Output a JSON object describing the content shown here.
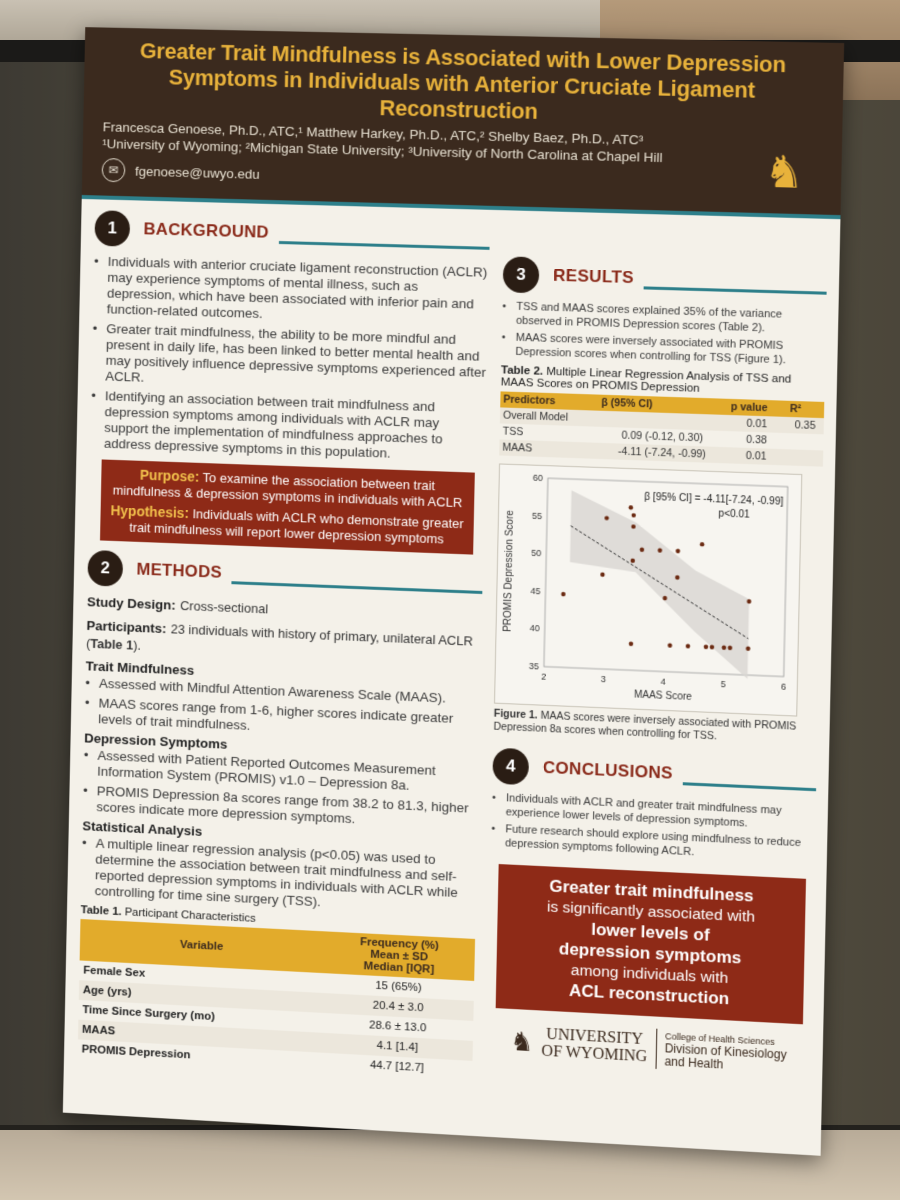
{
  "poster": {
    "title": "Greater Trait Mindfulness is Associated with Lower Depression Symptoms in Individuals with Anterior Cruciate Ligament Reconstruction",
    "authors": "Francesca Genoese, Ph.D., ATC,¹ Matthew Harkey, Ph.D., ATC,² Shelby Baez, Ph.D., ATC³",
    "affiliations": "¹University of Wyoming; ²Michigan State University; ³University of North Carolina at Chapel Hill",
    "email": "fgenoese@uwyo.edu"
  },
  "background": {
    "num": "1",
    "title": "BACKGROUND",
    "bullets": [
      "Individuals with anterior cruciate ligament reconstruction (ACLR) may experience symptoms of mental illness, such as depression, which have been associated with inferior pain and function-related outcomes.",
      "Greater trait mindfulness, the ability to be more mindful and present in daily life, has been linked to better mental health and may positively influence depressive symptoms experienced after ACLR.",
      "Identifying an association between trait mindfulness and depression symptoms among individuals with ACLR may support the implementation of mindfulness approaches to address depressive symptoms in this population."
    ],
    "purpose_label": "Purpose:",
    "purpose_text": "To examine the association between trait mindfulness & depression symptoms in individuals with ACLR",
    "hypothesis_label": "Hypothesis:",
    "hypothesis_text": "Individuals with ACLR who demonstrate greater trait mindfulness will report lower depression symptoms"
  },
  "methods": {
    "num": "2",
    "title": "METHODS",
    "design_label": "Study Design:",
    "design_text": "Cross-sectional",
    "participants_label": "Participants:",
    "participants_text": "23 individuals with history of primary, unilateral ACLR (",
    "participants_table_ref": "Table 1",
    "participants_end": ").",
    "trait_title": "Trait Mindfulness",
    "trait_bullets": [
      "Assessed with Mindful Attention Awareness Scale (MAAS).",
      "MAAS scores range from 1-6, higher scores indicate greater levels of trait mindfulness."
    ],
    "dep_title": "Depression Symptoms",
    "dep_bullets": [
      "Assessed with Patient Reported Outcomes Measurement Information System (PROMIS) v1.0 – Depression 8a.",
      "PROMIS Depression 8a scores range  from 38.2 to 81.3, higher scores indicate more depression symptoms."
    ],
    "stat_title": "Statistical Analysis",
    "stat_bullets": [
      "A multiple linear regression analysis (p<0.05) was used to determine the association between trait mindfulness and self-reported depression symptoms in individuals with ACLR while controlling for time sine surgery (TSS)."
    ],
    "table1_caption_bold": "Table 1.",
    "table1_caption": "Participant Characteristics",
    "table1_headers": [
      "Variable",
      "Frequency (%)\nMean ± SD\nMedian [IQR]"
    ],
    "table1_rows": [
      {
        "variable": "Female Sex",
        "value": "15 (65%)"
      },
      {
        "variable": "Age (yrs)",
        "value": "20.4 ± 3.0"
      },
      {
        "variable": "Time Since Surgery (mo)",
        "value": "28.6 ± 13.0"
      },
      {
        "variable": "MAAS",
        "value": "4.1 [1.4]"
      },
      {
        "variable": "PROMIS Depression",
        "value": "44.7 [12.7]"
      }
    ]
  },
  "results": {
    "num": "3",
    "title": "RESULTS",
    "bullets": [
      "TSS and MAAS scores explained 35% of the variance observed in PROMIS Depression scores (Table 2).",
      "MAAS scores were inversely associated with PROMIS Depression scores when controlling for TSS (Figure 1)."
    ],
    "table2_caption_bold": "Table 2.",
    "table2_caption": "Multiple Linear Regression Analysis of TSS and MAAS Scores on PROMIS Depression",
    "table2_headers": [
      "Predictors",
      "β (95% CI)",
      "p value",
      "R²"
    ],
    "table2_rows": [
      {
        "predictor": "Overall Model",
        "beta": "",
        "p": "0.01",
        "r2": "0.35"
      },
      {
        "predictor": "TSS",
        "beta": "0.09 (-0.12, 0.30)",
        "p": "0.38",
        "r2": ""
      },
      {
        "predictor": "MAAS",
        "beta": "-4.11 (-7.24, -0.99)",
        "p": "0.01",
        "r2": ""
      }
    ],
    "figure_caption_bold": "Figure 1.",
    "figure_caption": "MAAS scores were inversely associated with PROMIS Depression 8a scores when controlling for TSS."
  },
  "chart_data": {
    "type": "scatter",
    "annotation_line1": "β  [95% CI] =  -4.11[-7.24, -0.99]",
    "annotation_line2": "p<0.01",
    "xlabel": "MAAS Score",
    "ylabel": "PROMIS Depression Score",
    "xlim": [
      2,
      6
    ],
    "ylim": [
      35,
      60
    ],
    "xticks": [
      2,
      3,
      4,
      5,
      6
    ],
    "yticks": [
      35,
      40,
      45,
      50,
      55,
      60
    ],
    "points": [
      [
        2.3,
        44.7
      ],
      [
        3.0,
        55.0
      ],
      [
        2.95,
        47.5
      ],
      [
        3.4,
        56.5
      ],
      [
        3.45,
        55.5
      ],
      [
        3.45,
        54.0
      ],
      [
        3.45,
        49.5
      ],
      [
        3.45,
        38.5
      ],
      [
        3.6,
        51.0
      ],
      [
        3.9,
        51.0
      ],
      [
        4.0,
        44.7
      ],
      [
        4.1,
        38.5
      ],
      [
        4.2,
        47.5
      ],
      [
        4.2,
        51.0
      ],
      [
        4.4,
        38.5
      ],
      [
        4.6,
        52.0
      ],
      [
        4.7,
        38.5
      ],
      [
        4.8,
        38.5
      ],
      [
        5.0,
        38.5
      ],
      [
        5.1,
        38.5
      ],
      [
        5.4,
        44.7
      ],
      [
        5.4,
        38.5
      ]
    ],
    "trend": [
      [
        2.4,
        53.8
      ],
      [
        5.4,
        39.8
      ]
    ],
    "ci_upper": [
      [
        2.4,
        58.5
      ],
      [
        3.5,
        54.5
      ],
      [
        4.5,
        48.5
      ],
      [
        5.4,
        45.0
      ]
    ],
    "ci_lower": [
      [
        2.4,
        49.0
      ],
      [
        3.5,
        48.0
      ],
      [
        4.5,
        40.5
      ],
      [
        5.4,
        34.5
      ]
    ]
  },
  "conclusions": {
    "num": "4",
    "title": "CONCLUSIONS",
    "bullets": [
      "Individuals with ACLR and greater trait mindfulness may experience lower levels of depression symptoms.",
      "Future research should explore using mindfulness to reduce depression symptoms following ACLR."
    ],
    "box_line1": "Greater trait mindfulness",
    "box_line2": "is significantly associated with",
    "box_line3": "lower levels of",
    "box_line4": "depression symptoms",
    "box_line5": "among individuals with",
    "box_line6": "ACL reconstruction"
  },
  "footer": {
    "uni_line1": "UNIVERSITY",
    "uni_line2": "OF WYOMING",
    "college": "College of Health Sciences",
    "division_line1": "Division of Kinesiology",
    "division_line2": "and Health"
  }
}
